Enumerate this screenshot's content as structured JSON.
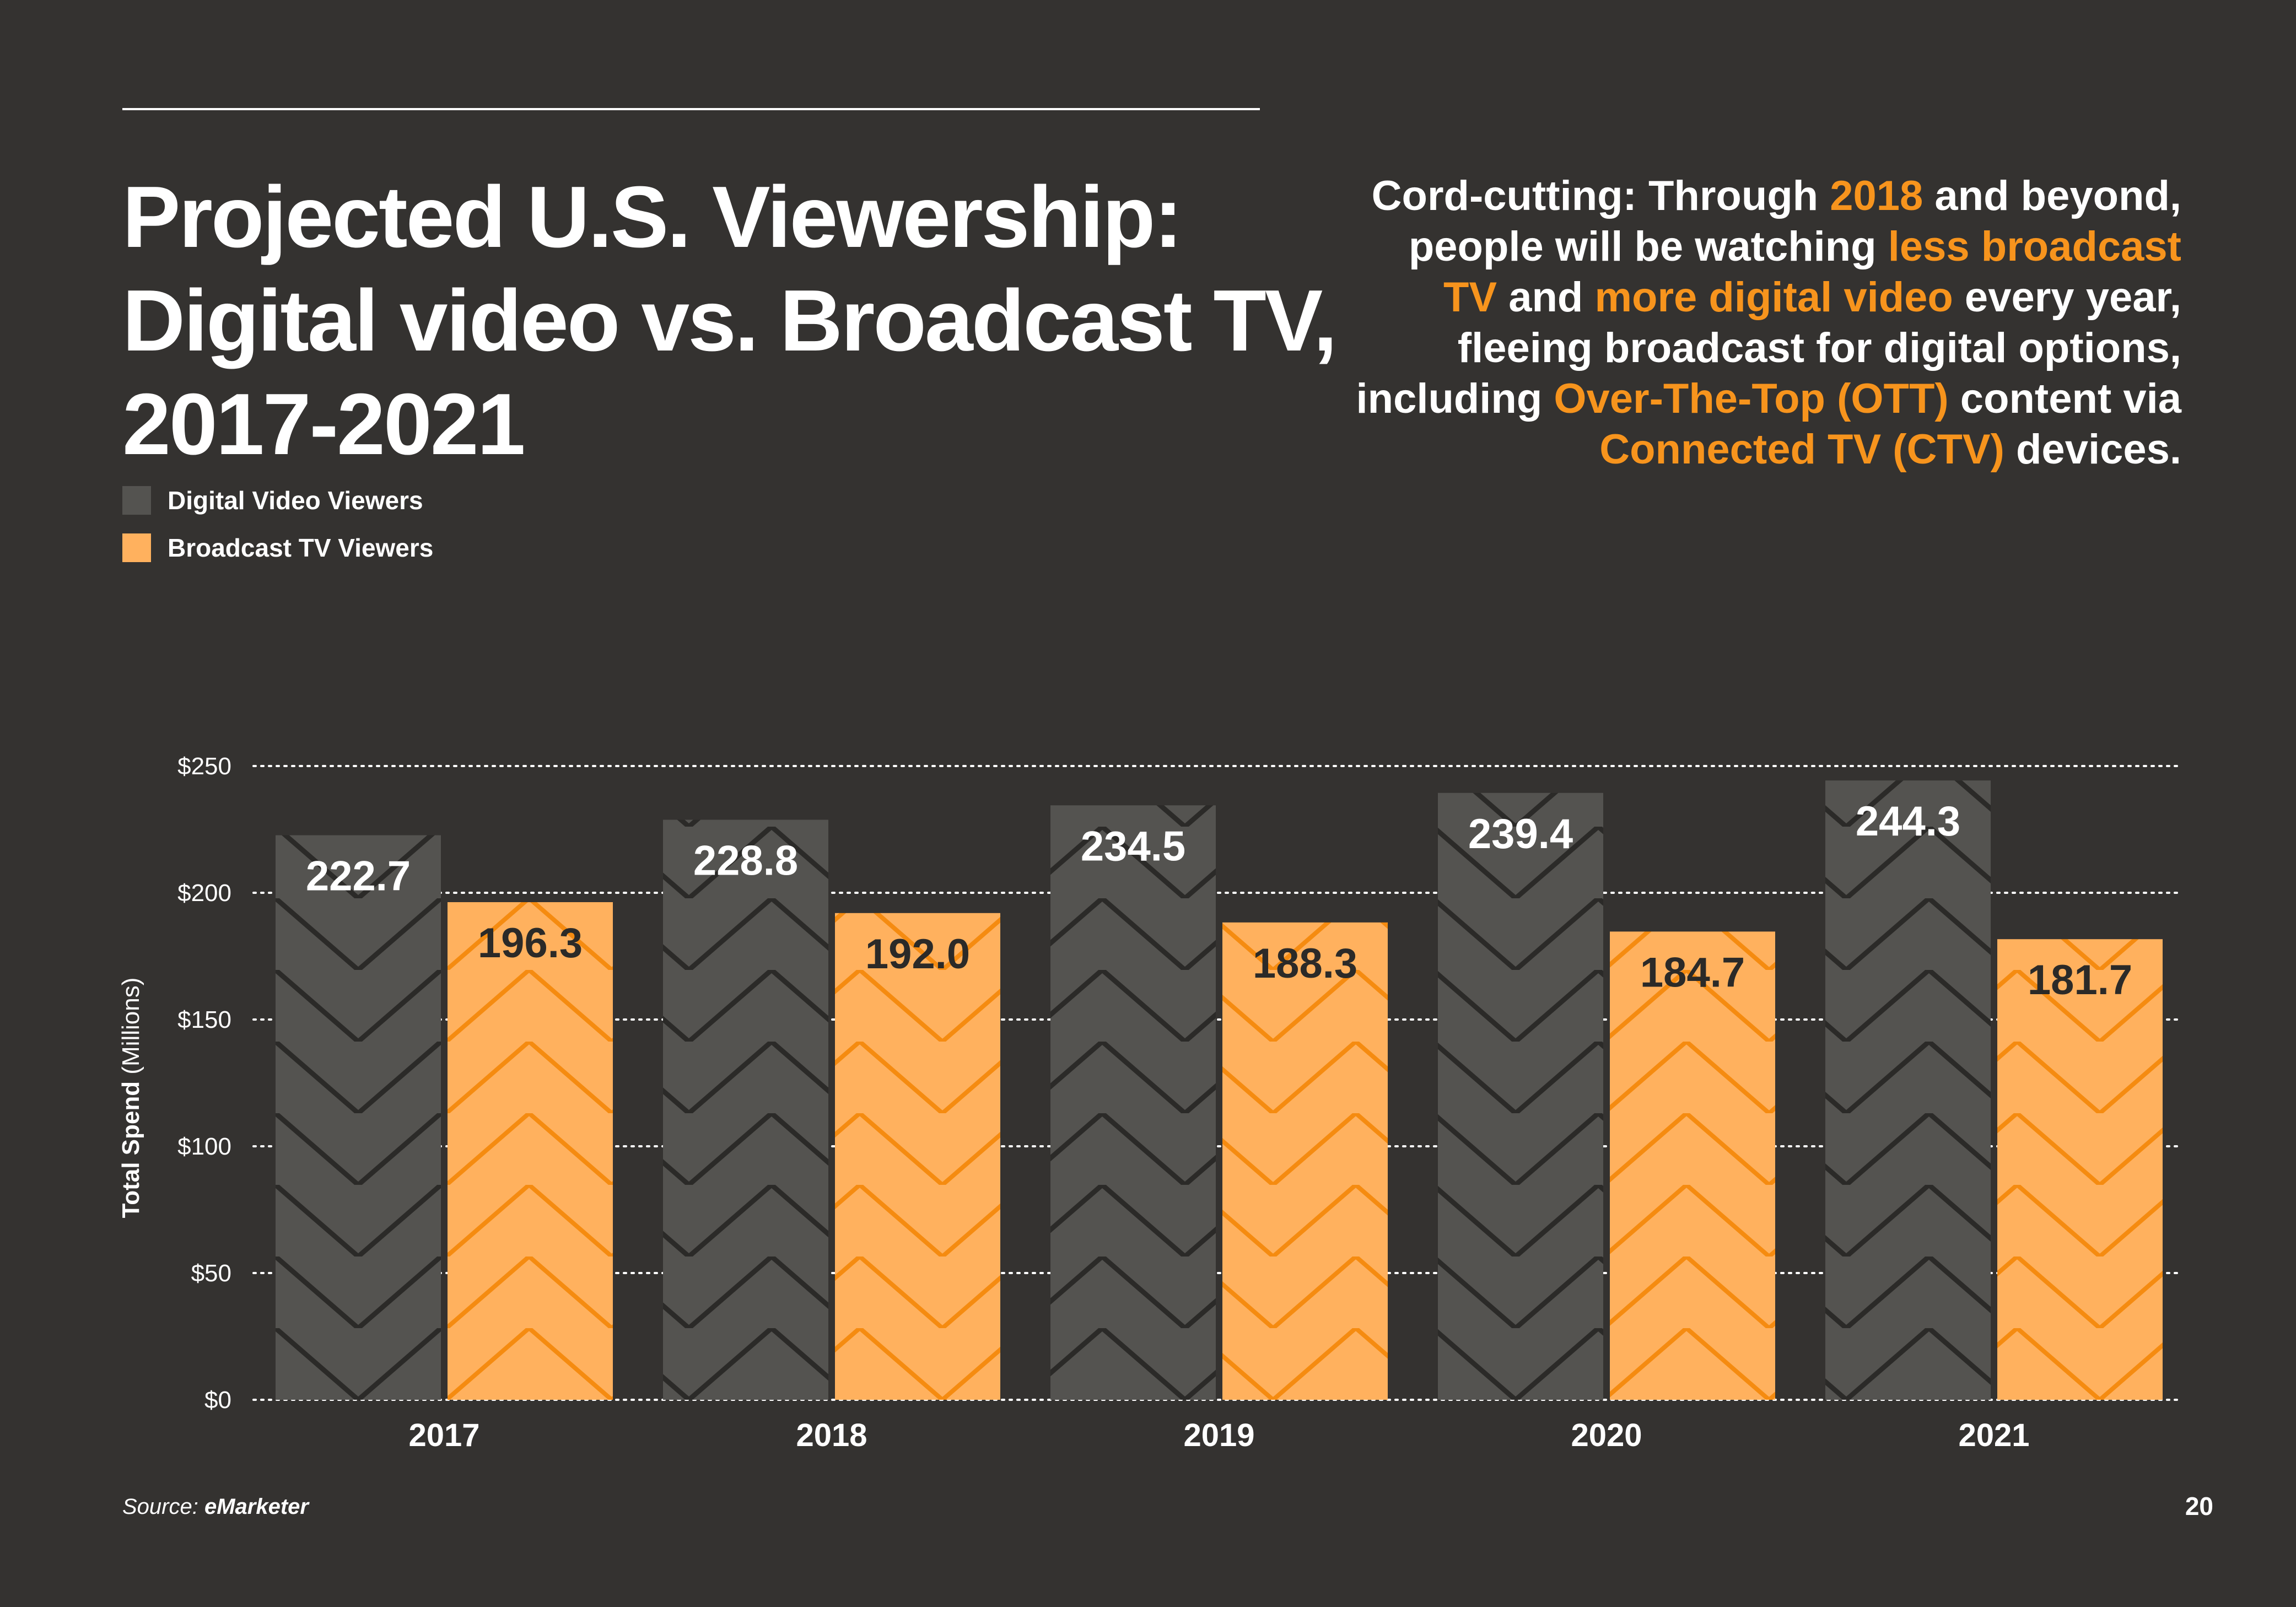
{
  "title_lines": [
    "Projected U.S. Viewership:",
    "Digital video vs. Broadcast TV,",
    "2017-2021"
  ],
  "callout": {
    "p1": "Cord-cutting: Through ",
    "h1": "2018",
    "p2": " and beyond, people will be watching ",
    "h2": "less broadcast TV",
    "p3": " and ",
    "h3": "more digital video",
    "p4": " every year, fleeing broadcast for digital options, including ",
    "h4": "Over-The-Top (OTT)",
    "p5": " content via ",
    "h5": "Connected TV (CTV)",
    "p6": " devices."
  },
  "colors": {
    "background": "#343230",
    "digital": "#545350",
    "broadcast": "#ffb15e",
    "highlight": "#f7941d"
  },
  "source": {
    "label": "Source:",
    "name": "eMarketer"
  },
  "page_number": "20",
  "chart_data": {
    "type": "bar",
    "categories": [
      "2017",
      "2018",
      "2019",
      "2020",
      "2021"
    ],
    "series": [
      {
        "name": "Digital Video Viewers",
        "values": [
          222.7,
          228.8,
          234.5,
          239.4,
          244.3
        ],
        "value_labels": [
          "222.7",
          "228.8",
          "234.5",
          "239.4",
          "244.3"
        ]
      },
      {
        "name": "Broadcast TV Viewers",
        "values": [
          196.3,
          192.0,
          188.3,
          184.7,
          181.7
        ],
        "value_labels": [
          "196.3",
          "192.0",
          "188.3",
          "184.7",
          "181.7"
        ]
      }
    ],
    "yticks": [
      0,
      50,
      100,
      150,
      200,
      250
    ],
    "ytick_labels": [
      "$0",
      "$50",
      "$100",
      "$150",
      "$200",
      "$250"
    ],
    "ylim": [
      0,
      250
    ],
    "ylabel_bold": "Total Spend",
    "ylabel_rest": " (Millions)",
    "grid": true,
    "legend": "top-left"
  }
}
